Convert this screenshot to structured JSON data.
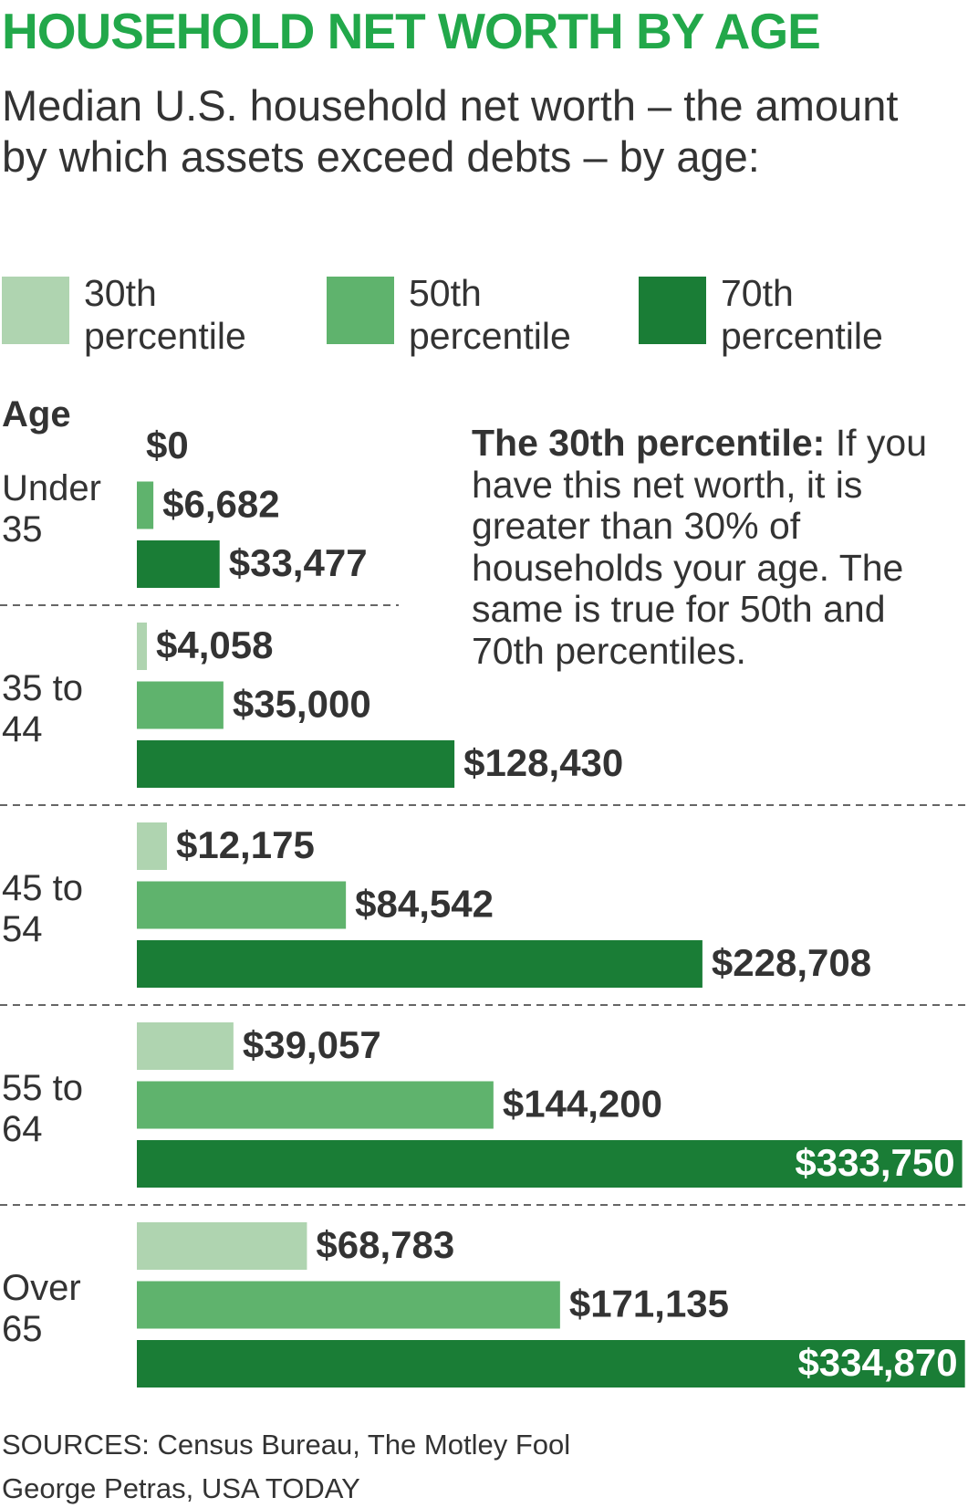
{
  "chart_data": {
    "type": "bar",
    "orientation": "horizontal",
    "title": "HOUSEHOLD NET WORTH BY AGE",
    "subtitle": "Median U.S. household net worth – the amount by which assets exceed debts – by age:",
    "y_label": "Age",
    "categories": [
      "Under 35",
      "35 to 44",
      "45 to 54",
      "55 to 64",
      "Over 65"
    ],
    "series": [
      {
        "name": "30th percentile",
        "color": "#afd4b0",
        "values": [
          0,
          4058,
          12175,
          39057,
          68783
        ],
        "value_labels": [
          "$0",
          "$4,058",
          "$12,175",
          "$39,057",
          "$68,783"
        ]
      },
      {
        "name": "50th percentile",
        "color": "#5fb36d",
        "values": [
          6682,
          35000,
          84542,
          144200,
          171135
        ],
        "value_labels": [
          "$6,682",
          "$35,000",
          "$84,542",
          "$144,200",
          "$171,135"
        ]
      },
      {
        "name": "70th percentile",
        "color": "#1a7d36",
        "values": [
          33477,
          128430,
          228708,
          333750,
          334870
        ],
        "value_labels": [
          "$33,477",
          "$128,430",
          "$228,708",
          "$333,750",
          "$334,870"
        ]
      }
    ],
    "xlim": [
      0,
      335000
    ],
    "annotation_title": "The 30th percentile:",
    "annotation": "If you have this net worth, it is greater than 30% of households your age. The same is true for 50th and 70th percentiles.",
    "sources": "SOURCES:  Census  Bureau, The Motley Fool",
    "credit": "George Petras, USA TODAY"
  }
}
